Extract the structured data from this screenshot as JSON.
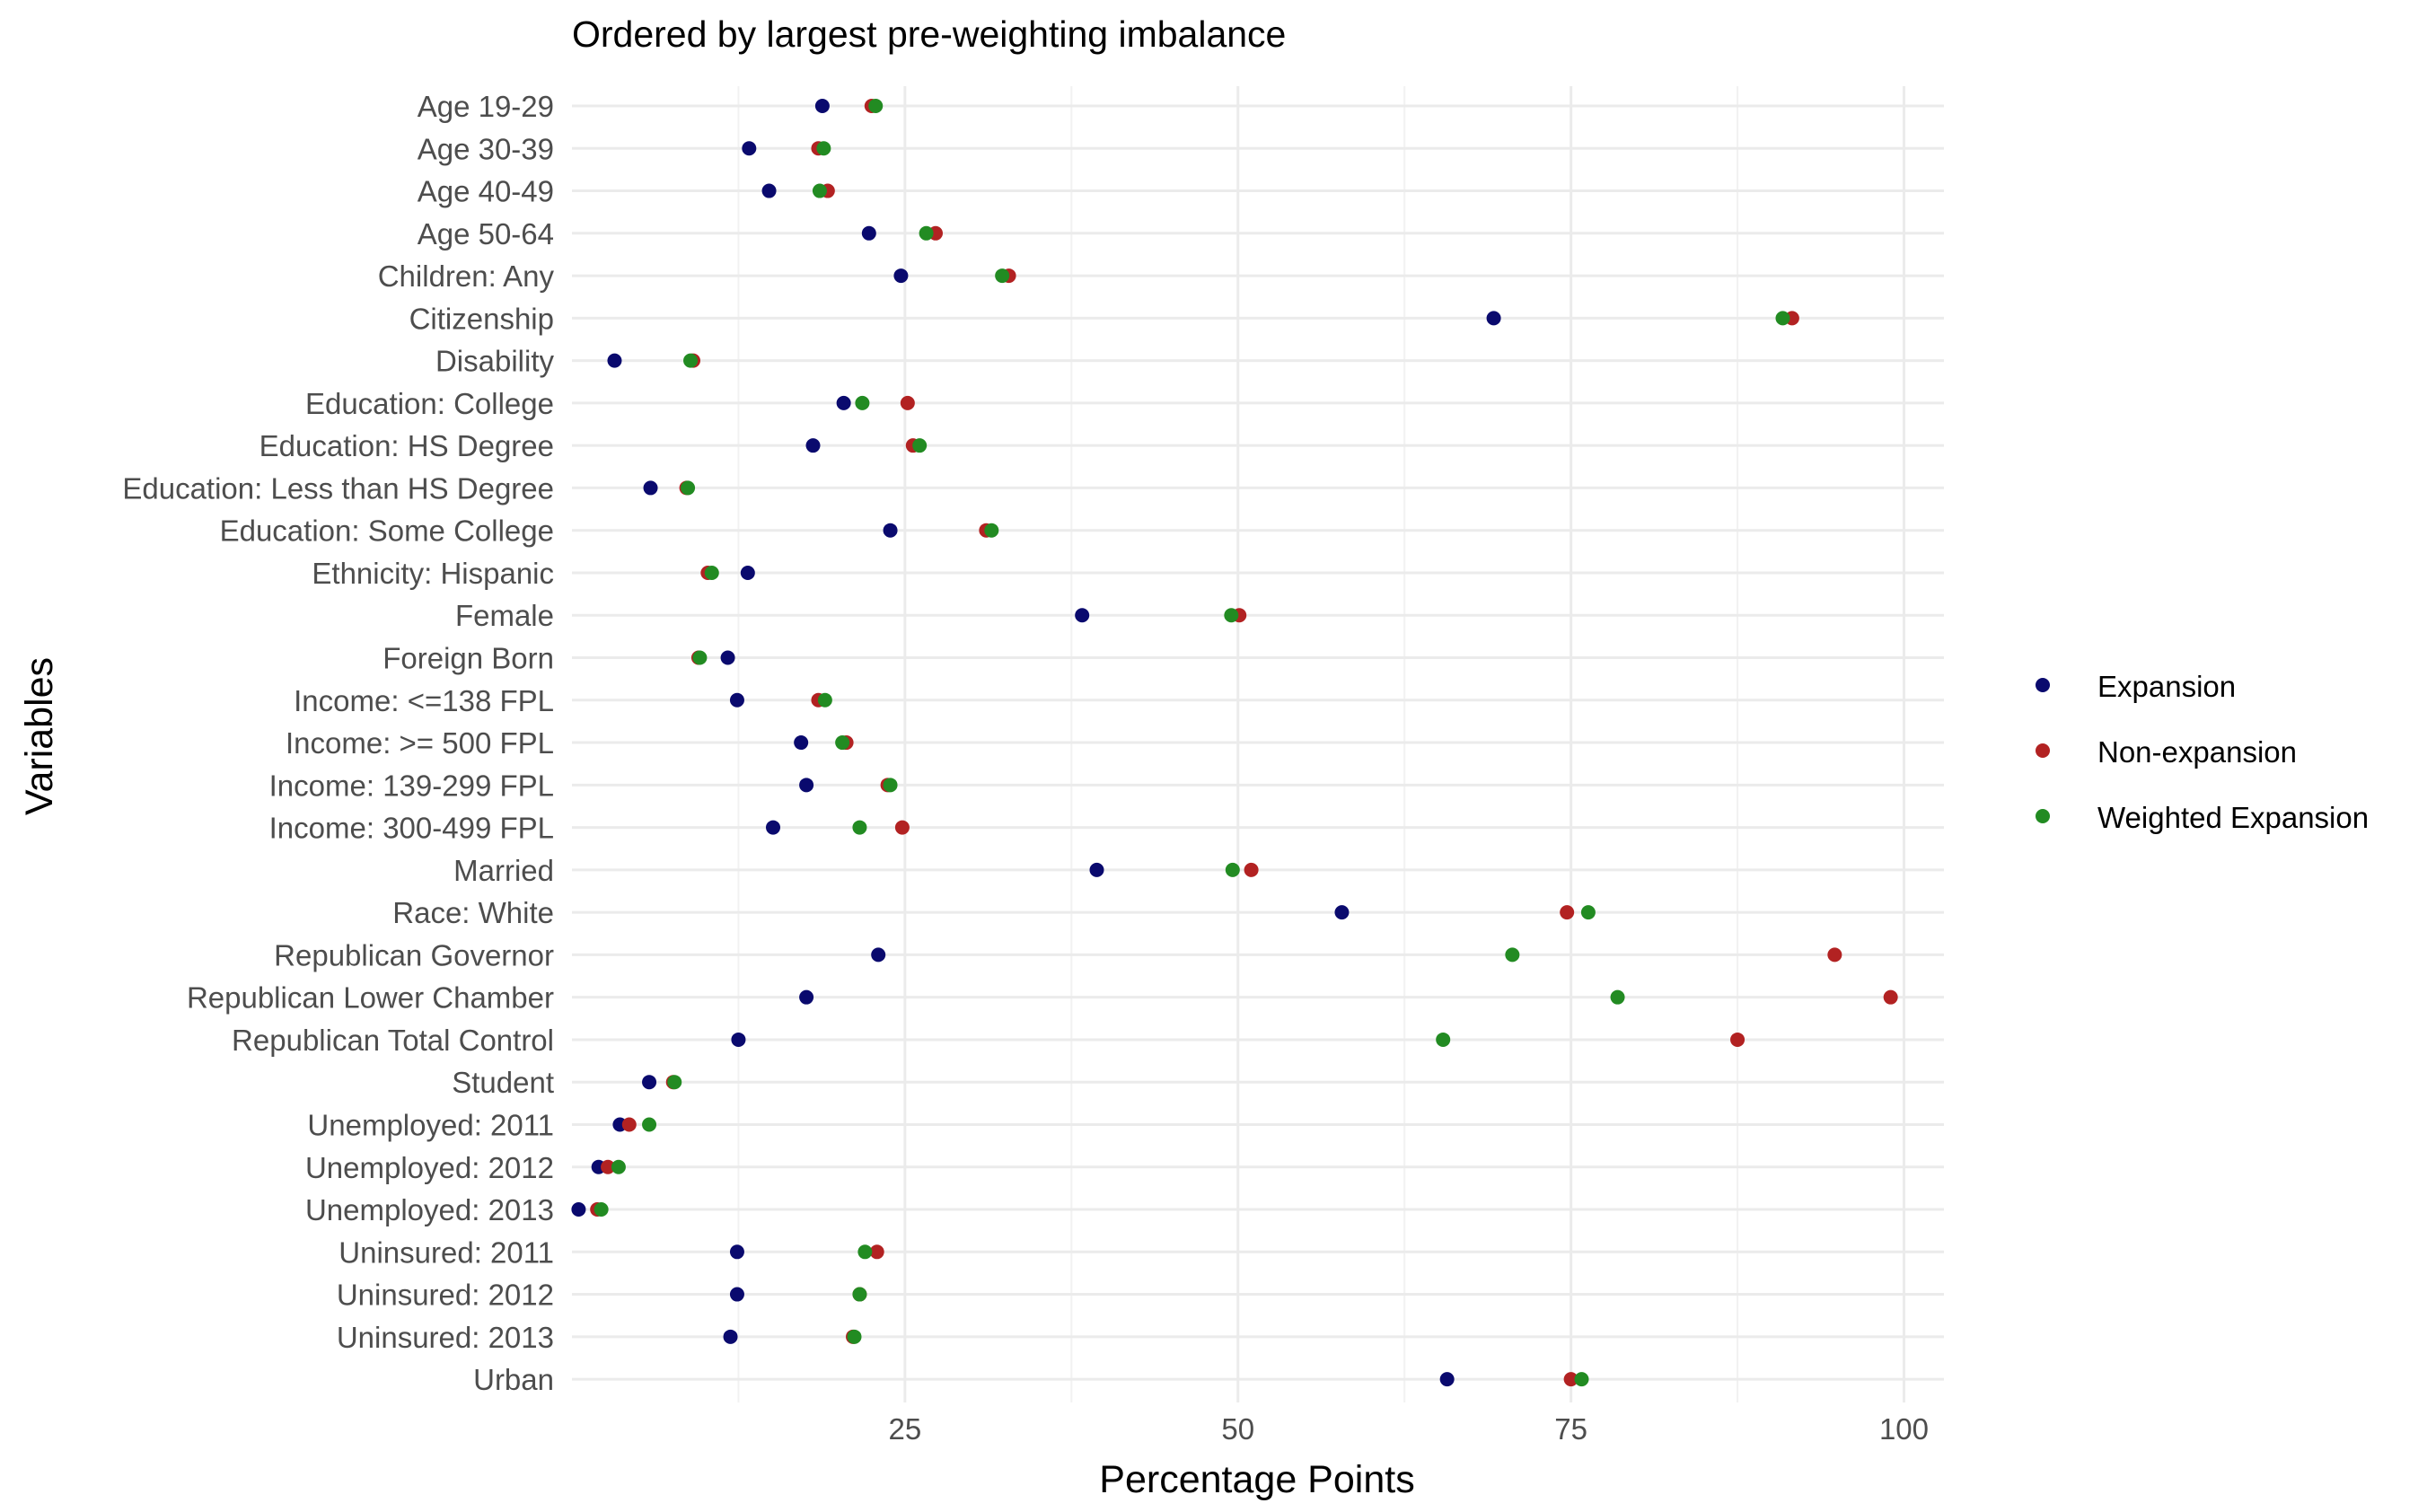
{
  "chart_data": {
    "type": "scatter",
    "title": "Ordered by largest pre-weighting imbalance",
    "xlabel": "Percentage Points",
    "ylabel": "Variables",
    "xlim": [
      0,
      103
    ],
    "xticks": [
      25,
      50,
      75,
      100
    ],
    "grid": true,
    "legend_position": "right",
    "categories": [
      "Age 19-29",
      "Age 30-39",
      "Age 40-49",
      "Age 50-64",
      "Children: Any",
      "Citizenship",
      "Disability",
      "Education: College",
      "Education: HS Degree",
      "Education: Less than HS Degree",
      "Education: Some College",
      "Ethnicity: Hispanic",
      "Female",
      "Foreign Born",
      "Income: <=138 FPL",
      "Income: >= 500 FPL",
      "Income: 139-299 FPL",
      "Income: 300-499 FPL",
      "Married",
      "Race: White",
      "Republican Governor",
      "Republican Lower Chamber",
      "Republican Total Control",
      "Student",
      "Unemployed: 2011",
      "Unemployed: 2012",
      "Unemployed: 2013",
      "Uninsured: 2011",
      "Uninsured: 2012",
      "Uninsured: 2013",
      "Urban"
    ],
    "series": [
      {
        "name": "Expansion",
        "color": "#0a0a6e",
        "values": [
          18.8,
          13.3,
          14.8,
          22.3,
          24.7,
          69.2,
          3.2,
          20.4,
          18.1,
          5.9,
          23.9,
          13.2,
          38.3,
          11.7,
          12.4,
          17.2,
          17.6,
          15.1,
          39.4,
          57.8,
          23.0,
          17.6,
          12.5,
          5.8,
          3.6,
          2.0,
          0.5,
          12.4,
          12.4,
          11.9,
          65.7
        ]
      },
      {
        "name": "Non-expansion",
        "color": "#b22222",
        "values": [
          22.5,
          18.5,
          19.2,
          27.3,
          32.8,
          91.6,
          9.1,
          25.2,
          25.6,
          8.6,
          31.1,
          10.2,
          50.1,
          9.5,
          18.5,
          20.6,
          23.7,
          24.8,
          51.0,
          74.7,
          94.8,
          99.0,
          87.5,
          7.6,
          4.3,
          2.7,
          1.9,
          22.9,
          21.6,
          21.1,
          75.0
        ]
      },
      {
        "name": "Weighted Expansion",
        "color": "#228b22",
        "values": [
          22.8,
          18.9,
          18.6,
          26.6,
          32.3,
          90.9,
          8.9,
          21.8,
          26.1,
          8.7,
          31.5,
          10.5,
          49.5,
          9.6,
          19.0,
          20.3,
          23.9,
          21.6,
          49.6,
          76.3,
          70.6,
          78.5,
          65.4,
          7.7,
          5.8,
          3.5,
          2.2,
          22.0,
          21.6,
          21.2,
          75.8
        ]
      }
    ]
  }
}
